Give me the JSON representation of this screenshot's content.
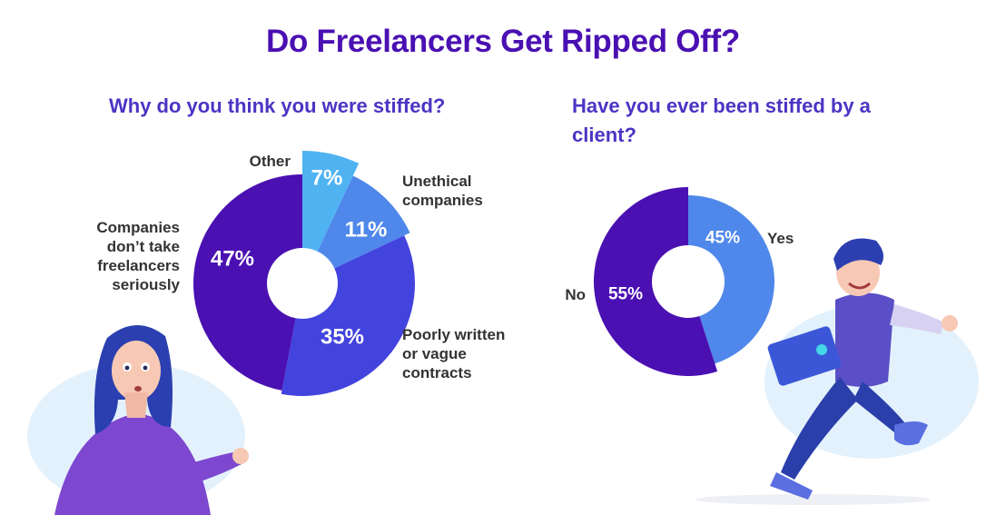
{
  "title": "Do Freelancers Get Ripped Off?",
  "chart_data": [
    {
      "type": "pie",
      "title": "Why do you think you were stiffed?",
      "categories": [
        "Other",
        "Unethical companies",
        "Poorly written or vague contracts",
        "Companies don’t take freelancers seriously"
      ],
      "values": [
        7,
        11,
        35,
        47
      ],
      "value_labels": [
        "7%",
        "11%",
        "35%",
        "47%"
      ],
      "colors": [
        "#4fb3f2",
        "#4f88ea",
        "#4343de",
        "#4a10b2"
      ],
      "label_lines": [
        [
          "Other"
        ],
        [
          "Unethical",
          "companies"
        ],
        [
          "Poorly written",
          "or vague",
          "contracts"
        ],
        [
          "Companies",
          "don’t take",
          "freelancers",
          "seriously"
        ]
      ]
    },
    {
      "type": "pie",
      "title": "Have you ever been stiffed by a client?",
      "categories": [
        "Yes",
        "No"
      ],
      "values": [
        45,
        55
      ],
      "value_labels": [
        "45%",
        "55%"
      ],
      "colors": [
        "#4f88ea",
        "#4a10b2"
      ],
      "label_lines": [
        [
          "Yes"
        ],
        [
          "No"
        ]
      ]
    }
  ]
}
